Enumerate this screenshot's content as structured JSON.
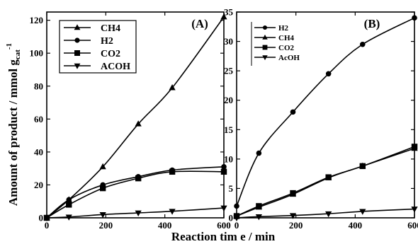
{
  "figure": {
    "ylabel_main": "Amount of product / mmol g",
    "ylabel_cat": "cat",
    "ylabel_exp": "-1",
    "xlabel": "Reaction tim e / min"
  },
  "chart_data": [
    {
      "type": "line",
      "panel_label": "(A)",
      "xlim": [
        0,
        600
      ],
      "ylim": [
        0,
        125
      ],
      "xticks": [
        "0",
        "200",
        "400",
        "600"
      ],
      "yticks": [
        "0",
        "20",
        "40",
        "60",
        "80",
        "100",
        "120"
      ],
      "legend_position": "top-left",
      "series": [
        {
          "name": "CH4",
          "marker": "triangle-up",
          "x": [
            0,
            75,
            190,
            310,
            425,
            600
          ],
          "y": [
            0,
            11,
            31,
            57,
            79,
            122
          ]
        },
        {
          "name": "H2",
          "marker": "circle",
          "x": [
            0,
            75,
            190,
            310,
            425,
            600
          ],
          "y": [
            0,
            11,
            20,
            25,
            29,
            31
          ]
        },
        {
          "name": "CO2",
          "marker": "square",
          "x": [
            0,
            75,
            190,
            310,
            425,
            600
          ],
          "y": [
            0,
            8,
            18,
            24,
            28,
            28
          ]
        },
        {
          "name": "ACOH",
          "marker": "triangle-down",
          "x": [
            0,
            75,
            190,
            310,
            425,
            600
          ],
          "y": [
            0,
            0.5,
            2,
            3,
            4,
            6
          ]
        }
      ]
    },
    {
      "type": "line",
      "panel_label": "(B)",
      "xlim": [
        0,
        600
      ],
      "ylim": [
        0,
        35
      ],
      "xticks": [
        "0",
        "200",
        "400",
        "600"
      ],
      "yticks": [
        "0",
        "5",
        "10",
        "15",
        "20",
        "25",
        "30",
        "35"
      ],
      "legend_position": "top-left",
      "series": [
        {
          "name": "H2",
          "marker": "circle",
          "x": [
            0,
            75,
            190,
            310,
            425,
            600
          ],
          "y": [
            2,
            11,
            18,
            24.5,
            29.5,
            34
          ]
        },
        {
          "name": "CH4",
          "marker": "triangle-up",
          "x": [
            0,
            75,
            190,
            310,
            425,
            600
          ],
          "y": [
            0.3,
            1.8,
            4,
            6.8,
            8.8,
            11.8
          ]
        },
        {
          "name": "CO2",
          "marker": "square",
          "x": [
            0,
            75,
            190,
            310,
            425,
            600
          ],
          "y": [
            0.3,
            2,
            4.2,
            6.9,
            8.8,
            12.1
          ]
        },
        {
          "name": "AcOH",
          "marker": "triangle-down",
          "x": [
            0,
            75,
            190,
            310,
            425,
            600
          ],
          "y": [
            0,
            0.2,
            0.4,
            0.7,
            1.1,
            1.5
          ]
        }
      ]
    }
  ]
}
